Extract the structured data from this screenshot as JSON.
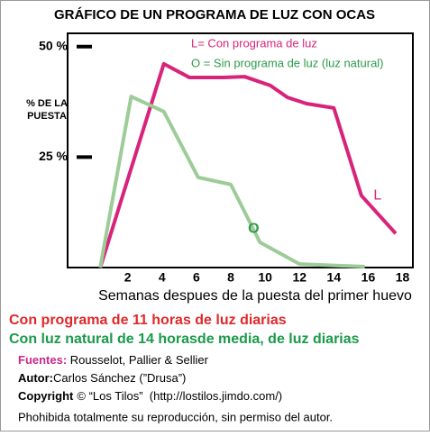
{
  "chart_data": {
    "type": "line",
    "title": "GRÁFICO DE UN PROGRAMA DE LUZ CON OCAS",
    "xlabel": "Semanas despues de la puesta del primer huevo",
    "ylabel": [
      "% DE LA",
      "PUESTA"
    ],
    "legend_lines": [
      {
        "text": "L= Con programa de luz",
        "color": "#d8237a"
      },
      {
        "text": "O = Sin programa de luz (luz natural)",
        "color": "#2e9a4a"
      }
    ],
    "xlim": [
      -1.5,
      18.6
    ],
    "ylim": [
      0,
      53
    ],
    "xticks": [
      2,
      4,
      6,
      8,
      10,
      12,
      14,
      16,
      18
    ],
    "yticks": [
      {
        "value": 25,
        "label": "25 %"
      },
      {
        "value": 50,
        "label": "50 %"
      }
    ],
    "grid": false,
    "series": [
      {
        "name": "L",
        "color": "#d8237a",
        "x": [
          0.4,
          4.1,
          5.6,
          7.5,
          8.8,
          10.3,
          11.3,
          12.4,
          14.0,
          15.6,
          17.6
        ],
        "values": [
          0,
          46.1,
          43.0,
          43.0,
          43.2,
          41.2,
          38.5,
          37.1,
          36.1,
          16.3,
          7.7
        ]
      },
      {
        "name": "O",
        "color": "#9dcc98",
        "x": [
          0.4,
          2.2,
          4.1,
          6.1,
          8.0,
          9.7,
          12.0,
          15.8
        ],
        "values": [
          0,
          38.7,
          35.3,
          20.4,
          18.8,
          5.7,
          0.8,
          0.2
        ]
      }
    ]
  },
  "footer": {
    "line1": "Con programa de 11 horas de luz diarias",
    "line2": "Con luz natural de 14 horasde media, de luz diarias",
    "sources_label": "Fuentes:",
    "sources": " Rousselot, Pallier & Sellier",
    "author_label": "Autor:",
    "author": "Carlos Sánchez (”Drusa”)",
    "copyright_label": "Copyright",
    "copyright": "© “Los Tilos”  (http://lostilos.jimdo.com/)",
    "notice": "Phohibida totalmente su reproducción, sin permiso del autor."
  }
}
